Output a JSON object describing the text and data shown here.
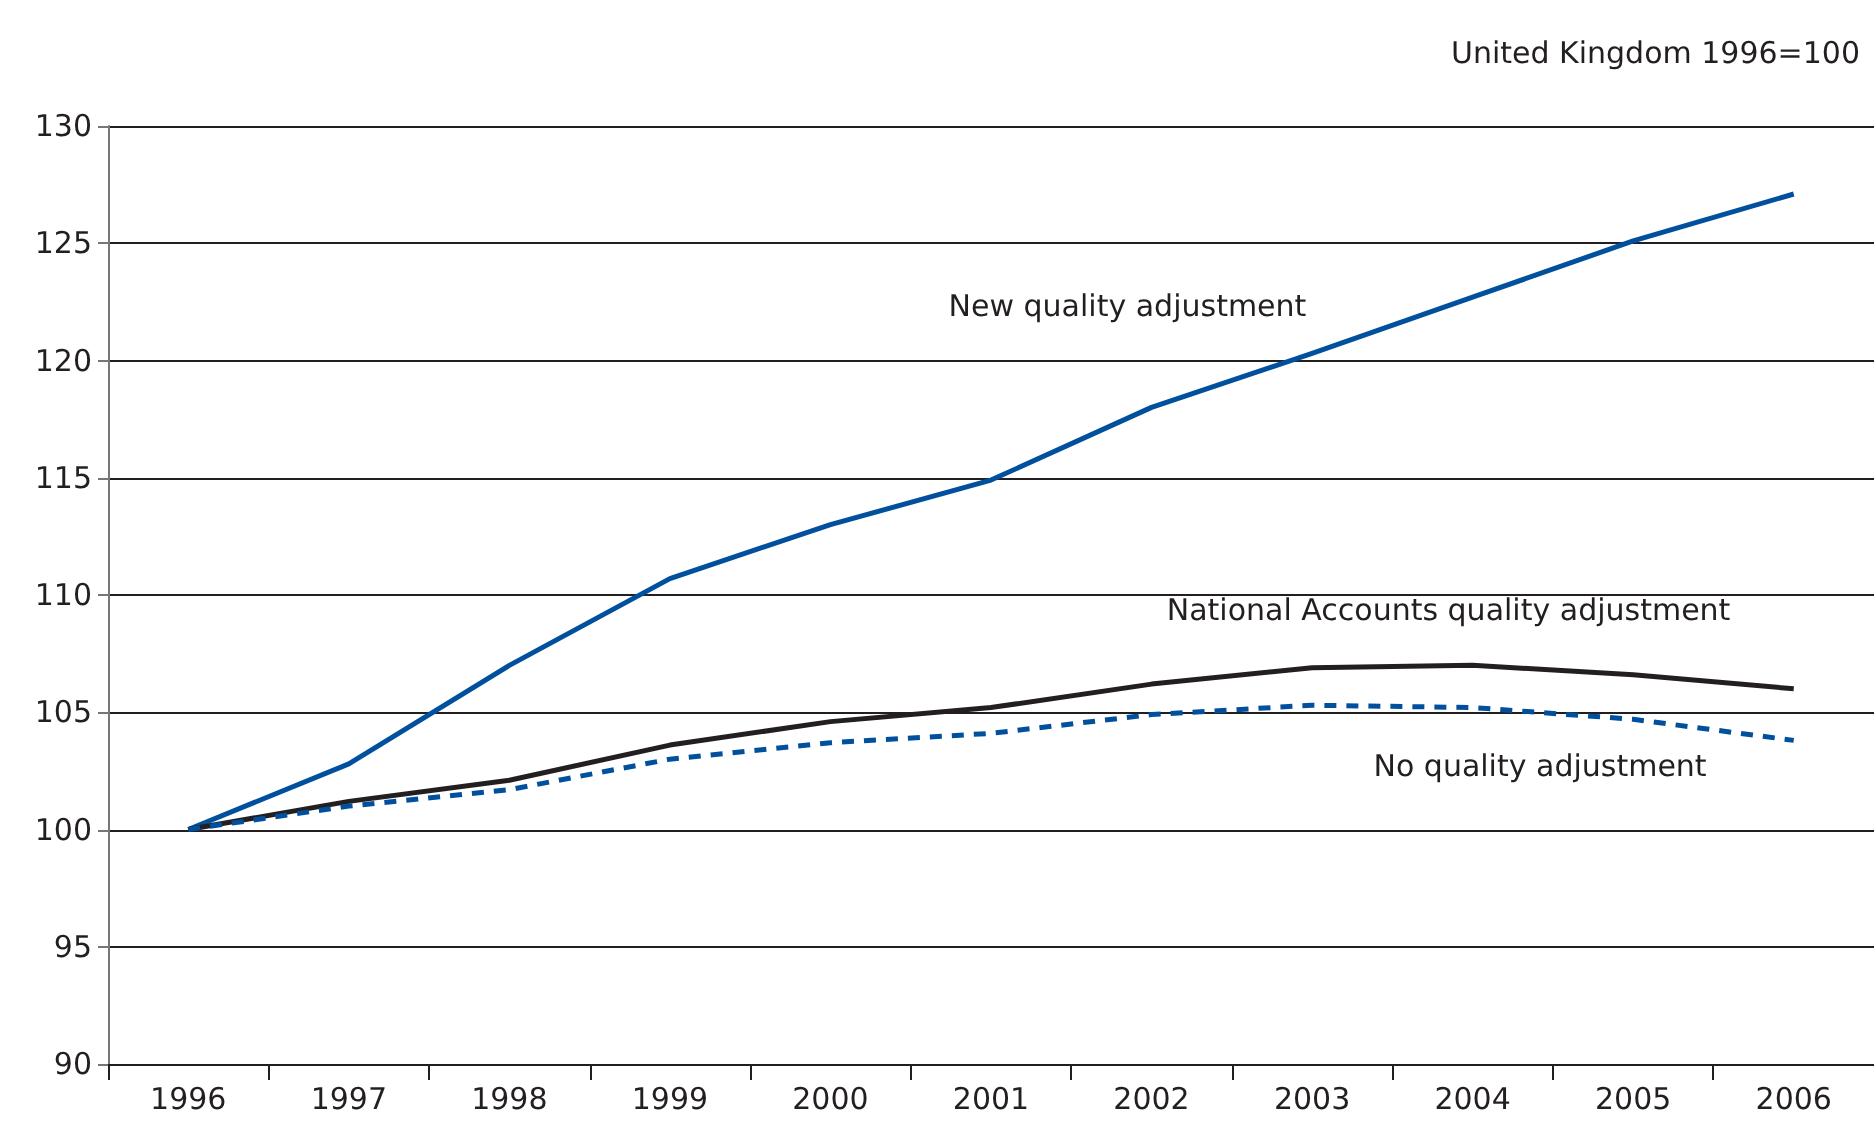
{
  "chart_data": {
    "type": "line",
    "title": "United Kingdom 1996=100",
    "categories": [
      "1996",
      "1997",
      "1998",
      "1999",
      "2000",
      "2001",
      "2002",
      "2003",
      "2004",
      "2005",
      "2006"
    ],
    "series": [
      {
        "name": "New quality adjustment",
        "color": "#00509e",
        "line_style": "solid",
        "values": [
          100,
          102.8,
          107,
          110.7,
          113,
          114.9,
          118,
          120.3,
          122.7,
          125.1,
          127.1
        ]
      },
      {
        "name": "National Accounts quality adjustment",
        "color": "#231f20",
        "line_style": "solid",
        "values": [
          100,
          101.2,
          102.1,
          103.6,
          104.6,
          105.2,
          106.2,
          106.9,
          107.0,
          106.6,
          106.0
        ]
      },
      {
        "name": "No quality adjustment",
        "color": "#00509e",
        "line_style": "dashed",
        "values": [
          100,
          101.0,
          101.7,
          103.0,
          103.7,
          104.1,
          104.9,
          105.3,
          105.2,
          104.7,
          103.8
        ]
      }
    ],
    "ylim": [
      90,
      130
    ],
    "yticks": [
      90,
      95,
      100,
      105,
      110,
      115,
      120,
      125,
      130
    ],
    "grid": "y",
    "legend": false,
    "marker": "none"
  }
}
